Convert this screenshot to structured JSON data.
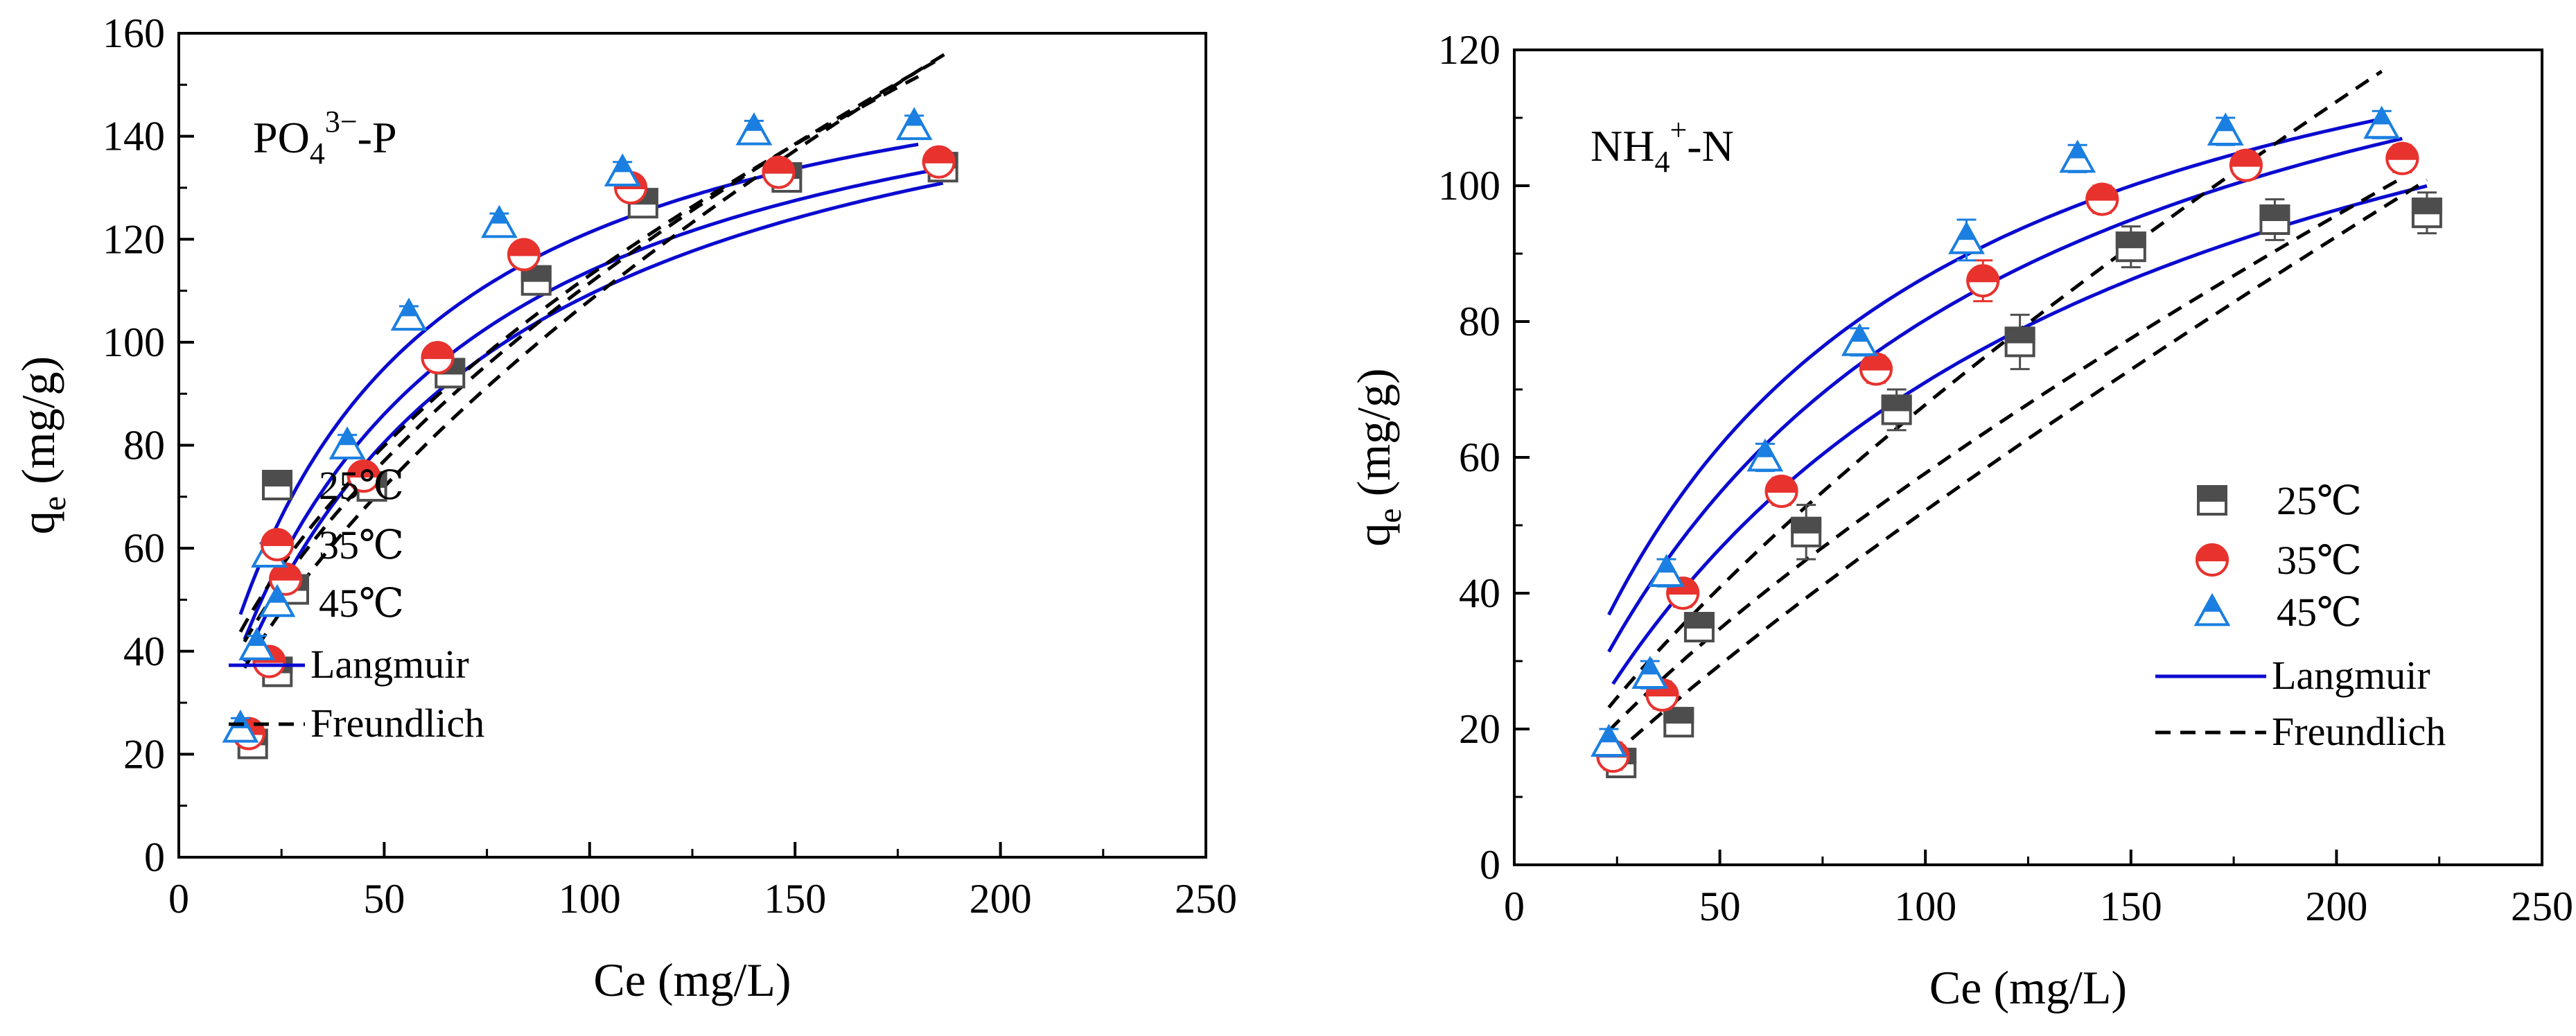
{
  "chart_data": [
    {
      "type": "scatter",
      "title_parts": {
        "base": "PO",
        "sub": "4",
        "sup": "3−",
        "suffix": "-P"
      },
      "xlabel": "Ce (mg/L)",
      "ylabel_base": "q",
      "ylabel_sub": "e",
      "ylabel_suffix": " (mg/g)",
      "xlim": [
        0,
        250
      ],
      "ylim": [
        0,
        160
      ],
      "xticks": [
        "0",
        "50",
        "100",
        "150",
        "200",
        "250"
      ],
      "yticks": [
        "0",
        "20",
        "40",
        "60",
        "80",
        "100",
        "120",
        "140",
        "160"
      ],
      "legend_position": "center-right",
      "series": [
        {
          "name": "25℃",
          "marker": "square",
          "color": "#4d4d4d",
          "x": [
            18,
            24,
            28,
            47,
            66,
            87,
            113,
            148,
            186
          ],
          "y": [
            22,
            36,
            52,
            72,
            94,
            112,
            127,
            132,
            134
          ],
          "yerr": [
            2,
            2,
            2,
            2,
            2,
            2,
            2,
            2,
            2
          ]
        },
        {
          "name": "35℃",
          "marker": "circle",
          "color": "#e8322e",
          "x": [
            17,
            22,
            26,
            45,
            63,
            84,
            110,
            146,
            185
          ],
          "y": [
            24,
            38,
            54,
            74,
            97,
            117,
            130,
            133,
            135
          ],
          "yerr": [
            2,
            2,
            2,
            2,
            2,
            2,
            2,
            2,
            2
          ]
        },
        {
          "name": "45℃",
          "marker": "triangle",
          "color": "#1a7fe0",
          "x": [
            15,
            19,
            22,
            41,
            56,
            78,
            108,
            140,
            179
          ],
          "y": [
            25,
            41,
            59,
            80,
            105,
            123,
            133,
            141,
            142
          ],
          "yerr": [
            2,
            2,
            2,
            2,
            2,
            2,
            2,
            2,
            2
          ]
        }
      ],
      "fits": [
        {
          "name": "Langmuir",
          "style": "solid",
          "color": "#0a0ad0",
          "params": [
            {
              "qmax": 170,
              "KL": 0.018,
              "xmin": 16,
              "xmax": 186
            },
            {
              "qmax": 168,
              "KL": 0.021,
              "xmin": 16,
              "xmax": 185
            },
            {
              "qmax": 168,
              "KL": 0.026,
              "xmin": 15,
              "xmax": 180
            }
          ]
        },
        {
          "name": "Freundlich",
          "style": "dashed",
          "color": "#000000",
          "params": [
            {
              "KF": 7.2,
              "n": 1.7,
              "xmin": 16,
              "xmax": 187
            },
            {
              "KF": 9.5,
              "n": 1.87,
              "xmin": 16,
              "xmax": 184
            },
            {
              "KF": 11.3,
              "n": 2.0,
              "xmin": 15,
              "xmax": 180
            }
          ]
        }
      ]
    },
    {
      "type": "scatter",
      "title_parts": {
        "base": "NH",
        "sub": "4",
        "sup": "+",
        "suffix": "-N"
      },
      "xlabel": "Ce (mg/L)",
      "ylabel_base": "q",
      "ylabel_sub": "e",
      "ylabel_suffix": " (mg/g)",
      "xlim": [
        0,
        250
      ],
      "ylim": [
        0,
        120
      ],
      "xticks": [
        "0",
        "50",
        "100",
        "150",
        "200",
        "250"
      ],
      "yticks": [
        "0",
        "20",
        "40",
        "60",
        "80",
        "100",
        "120"
      ],
      "legend_position": "lower-right",
      "series": [
        {
          "name": "25℃",
          "marker": "square",
          "color": "#4d4d4d",
          "x": [
            26,
            40,
            45,
            71,
            93,
            123,
            150,
            185,
            222
          ],
          "y": [
            15,
            21,
            35,
            49,
            67,
            77,
            91,
            95,
            96
          ],
          "yerr": [
            2,
            2,
            2,
            4,
            3,
            4,
            3,
            3,
            3
          ]
        },
        {
          "name": "35℃",
          "marker": "circle",
          "color": "#e8322e",
          "x": [
            24,
            36,
            41,
            65,
            88,
            114,
            143,
            178,
            216
          ],
          "y": [
            16,
            25,
            40,
            55,
            73,
            86,
            98,
            103,
            104
          ],
          "yerr": [
            2,
            2,
            2,
            2,
            2,
            3,
            2,
            2,
            2
          ]
        },
        {
          "name": "45℃",
          "marker": "triangle",
          "color": "#1a7fe0",
          "x": [
            23,
            33,
            37,
            61,
            84,
            110,
            137,
            173,
            211
          ],
          "y": [
            18,
            28,
            43,
            60,
            77,
            92,
            104,
            108,
            109
          ],
          "yerr": [
            2,
            2,
            2,
            2,
            2,
            3,
            2,
            2,
            2
          ]
        }
      ],
      "fits": [
        {
          "name": "Langmuir",
          "style": "solid",
          "color": "#0a0ad0",
          "params": [
            {
              "qmax": 150,
              "KL": 0.009,
              "xmin": 24,
              "xmax": 222
            },
            {
              "qmax": 150,
              "KL": 0.0115,
              "xmin": 23,
              "xmax": 216
            },
            {
              "qmax": 145,
              "KL": 0.0148,
              "xmin": 23,
              "xmax": 211
            }
          ]
        },
        {
          "name": "Freundlich",
          "style": "dashed",
          "color": "#000000",
          "params": [
            {
              "KF": 1.16,
              "n": 1.21,
              "xmin": 24,
              "xmax": 222
            },
            {
              "KF": 2.0,
              "n": 1.37,
              "xmin": 23,
              "xmax": 216
            },
            {
              "KF": 2.35,
              "n": 1.37,
              "xmin": 23,
              "xmax": 211
            }
          ]
        }
      ]
    }
  ]
}
